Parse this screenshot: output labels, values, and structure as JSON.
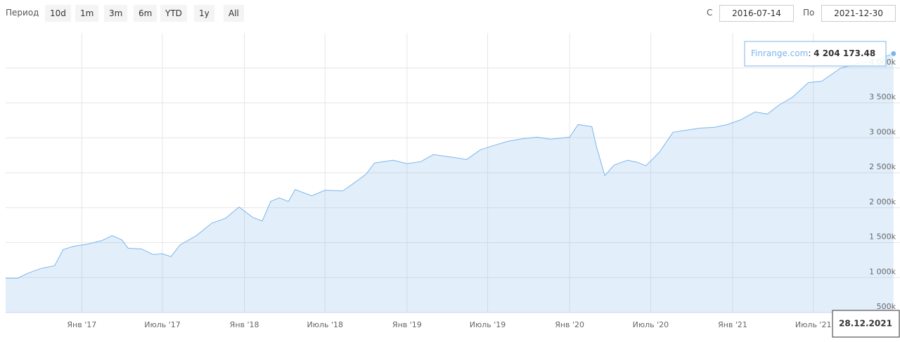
{
  "controls": {
    "period_label": "Период",
    "buttons": [
      "10d",
      "1m",
      "3m",
      "6m",
      "YTD",
      "1y",
      "All"
    ],
    "from_label": "С",
    "from": "2016-07-14",
    "to_label": "По",
    "to": "2021-12-30"
  },
  "chart_data": {
    "type": "line",
    "x": [
      "2016-07-14",
      "2016-08-10",
      "2016-09-01",
      "2016-10-01",
      "2016-11-01",
      "2016-11-20",
      "2016-12-15",
      "2017-01-15",
      "2017-02-15",
      "2017-03-10",
      "2017-04-01",
      "2017-04-15",
      "2017-05-15",
      "2017-06-10",
      "2017-07-01",
      "2017-07-20",
      "2017-08-10",
      "2017-09-15",
      "2017-10-20",
      "2017-11-20",
      "2017-12-20",
      "2018-01-20",
      "2018-02-10",
      "2018-03-01",
      "2018-03-20",
      "2018-04-10",
      "2018-04-25",
      "2018-06-01",
      "2018-07-01",
      "2018-08-10",
      "2018-09-10",
      "2018-10-01",
      "2018-10-20",
      "2018-12-01",
      "2019-01-01",
      "2019-02-01",
      "2019-03-01",
      "2019-04-15",
      "2019-05-15",
      "2019-06-15",
      "2019-07-20",
      "2019-08-15",
      "2019-09-20",
      "2019-10-20",
      "2019-11-20",
      "2020-01-01",
      "2020-01-20",
      "2020-02-20",
      "2020-03-01",
      "2020-03-20",
      "2020-04-10",
      "2020-05-10",
      "2020-06-01",
      "2020-06-20",
      "2020-07-20",
      "2020-08-20",
      "2020-09-20",
      "2020-10-20",
      "2020-11-20",
      "2020-12-20",
      "2021-01-20",
      "2021-02-20",
      "2021-03-20",
      "2021-04-15",
      "2021-05-15",
      "2021-06-20",
      "2021-07-20",
      "2021-09-01",
      "2021-10-15",
      "2021-11-20",
      "2021-12-28"
    ],
    "series": [
      {
        "name": "Finrange.com",
        "color": "#7cb5ec",
        "values": [
          990000,
          990000,
          1060000,
          1130000,
          1170000,
          1400000,
          1450000,
          1480000,
          1530000,
          1600000,
          1540000,
          1420000,
          1410000,
          1330000,
          1340000,
          1300000,
          1470000,
          1600000,
          1780000,
          1850000,
          2010000,
          1860000,
          1810000,
          2090000,
          2140000,
          2090000,
          2260000,
          2170000,
          2250000,
          2240000,
          2380000,
          2480000,
          2640000,
          2680000,
          2630000,
          2660000,
          2760000,
          2720000,
          2690000,
          2830000,
          2900000,
          2950000,
          2990000,
          3010000,
          2980000,
          3010000,
          3190000,
          3160000,
          2880000,
          2460000,
          2610000,
          2680000,
          2650000,
          2600000,
          2790000,
          3080000,
          3110000,
          3140000,
          3150000,
          3190000,
          3260000,
          3370000,
          3340000,
          3470000,
          3580000,
          3790000,
          3810000,
          4000000,
          4070000,
          4120000,
          4204173.48
        ]
      }
    ],
    "xlim": [
      "2016-07-14",
      "2021-12-30"
    ],
    "xticks": [
      {
        "value": "2017-01-01",
        "label": "Янв '17"
      },
      {
        "value": "2017-07-01",
        "label": "Июль '17"
      },
      {
        "value": "2018-01-01",
        "label": "Янв '18"
      },
      {
        "value": "2018-07-01",
        "label": "Июль '18"
      },
      {
        "value": "2019-01-01",
        "label": "Янв '19"
      },
      {
        "value": "2019-07-01",
        "label": "Июль '19"
      },
      {
        "value": "2020-01-01",
        "label": "Янв '20"
      },
      {
        "value": "2020-07-01",
        "label": "Июль '20"
      },
      {
        "value": "2021-01-01",
        "label": "Янв '21"
      },
      {
        "value": "2021-07-01",
        "label": "Июль '21"
      }
    ],
    "ylim": [
      500000,
      4500000
    ],
    "yticks": [
      {
        "value": 500000,
        "label": "500k"
      },
      {
        "value": 1000000,
        "label": "1 000k"
      },
      {
        "value": 1500000,
        "label": "1 500k"
      },
      {
        "value": 2000000,
        "label": "2 000k"
      },
      {
        "value": 2500000,
        "label": "2 500k"
      },
      {
        "value": 3000000,
        "label": "3 000k"
      },
      {
        "value": 3500000,
        "label": "3 500k"
      },
      {
        "value": 4000000,
        "label": "4 000k"
      }
    ],
    "grid": true,
    "tooltip": {
      "date": "28.12.2021",
      "value": {
        "value": 4204173.48,
        "label": "4 204 173.48"
      }
    }
  }
}
